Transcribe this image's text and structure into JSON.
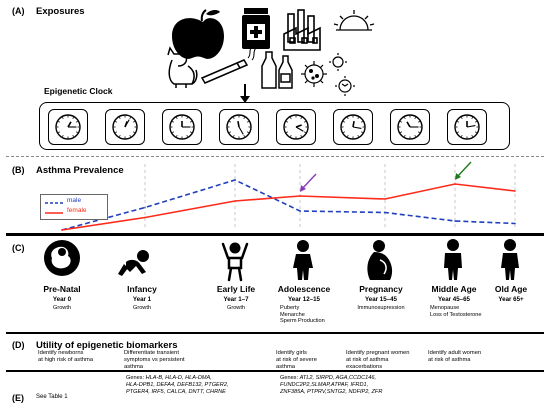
{
  "panels": {
    "a": {
      "letter": "(A)",
      "title": "Exposures",
      "clock_label": "Epigenetic Clock"
    },
    "b": {
      "letter": "(B)",
      "title": "Asthma Prevalence",
      "legend": [
        {
          "name": "male",
          "color": "#1f3fbf",
          "style": "dashed"
        },
        {
          "name": "female",
          "color": "#ff2a1a",
          "style": "solid"
        }
      ]
    },
    "c": {
      "letter": "(C)"
    },
    "d": {
      "letter": "(D)",
      "title": "Utility of epigenetic biomarkers"
    },
    "e": {
      "letter": "(E)"
    }
  },
  "exposure_icons": [
    "apple-icon",
    "medicine-bottle-icon",
    "factory-icon",
    "sun-icon",
    "cat-icon",
    "cigarette-icon",
    "bottles-icon",
    "virus-icon",
    "pollen-icon"
  ],
  "clock_count": 8,
  "chart_data": {
    "type": "line",
    "title": "Asthma Prevalence",
    "xlabel": "",
    "ylabel": "",
    "categories": [
      "Pre-Natal",
      "Infancy",
      "Early Life",
      "Adolescence",
      "Pregnancy",
      "Middle Age",
      "Old Age"
    ],
    "series": [
      {
        "name": "male",
        "color": "#1f3fbf",
        "style": "dashed",
        "values": [
          0.0,
          0.45,
          1.0,
          0.38,
          0.35,
          0.18,
          0.13
        ]
      },
      {
        "name": "female",
        "color": "#ff2a1a",
        "style": "solid",
        "values": [
          0.0,
          0.25,
          0.58,
          0.68,
          0.62,
          0.92,
          0.78
        ]
      }
    ],
    "annotations": [
      {
        "category": "Adolescence",
        "series": "female",
        "color": "#8a3ab9"
      },
      {
        "category": "Middle Age",
        "series": "female",
        "color": "#1f7a1f"
      }
    ],
    "grid": "vertical-dashed",
    "legend_position": "left"
  },
  "stages": [
    {
      "name": "Pre-Natal",
      "year": "Year 0",
      "notes": [
        "Growth"
      ],
      "icon": "fetus-icon"
    },
    {
      "name": "Infancy",
      "year": "Year 1",
      "notes": [
        "Growth"
      ],
      "icon": "crawling-baby-icon"
    },
    {
      "name": "Early Life",
      "year": "Year 1–7",
      "notes": [
        "Growth"
      ],
      "icon": "child-icon"
    },
    {
      "name": "Adolescence",
      "year": "Year 12–15",
      "notes": [
        "Puberty",
        "Menarche",
        "Sperm Production"
      ],
      "icon": "adolescent-icon"
    },
    {
      "name": "Pregnancy",
      "year": "Year 15–45",
      "notes": [
        "Immunosupression"
      ],
      "icon": "pregnant-woman-icon"
    },
    {
      "name": "Middle Age",
      "year": "Year 45–65",
      "notes": [
        "Menopause",
        "Loss of Testosterone"
      ],
      "icon": "adult-icon"
    },
    {
      "name": "Old Age",
      "year": "Year 65+",
      "notes": [],
      "icon": "elderly-person-icon"
    }
  ],
  "utility": [
    {
      "lines": [
        "Identify newborns",
        "at high risk of asthma"
      ]
    },
    {
      "lines": [
        "Differentiate transient",
        "symptoms vs persistent",
        "asthma"
      ]
    },
    {
      "lines": [
        "Identify girls",
        "at risk of severe",
        "asthma"
      ]
    },
    {
      "lines": [
        "Identify pregnant women",
        "at risk of asthma",
        "exacerbations"
      ]
    },
    {
      "lines": [
        "Identify adult women",
        "at risk of asthma"
      ]
    }
  ],
  "genes": {
    "see_table": "See Table 1",
    "early": {
      "label": "Genes: ",
      "lines": [
        "HLA-B, HLA-D, HLA-DMA,",
        "HLA-DPB1, DEFA4, DEFB132, PTGER2,",
        "PTGER4, IRF5, CALCA, DNTT, CHRNE"
      ]
    },
    "later": {
      "label": "Genes: ",
      "lines": [
        "ATL2, SIRPD, AGA,CCDC146,",
        "FUNDC2P2,SLMAP,ATPAF, IFRD1,",
        "ZNF385A, PTPRV,SNTG2, NDFIP2, ZFR"
      ]
    }
  }
}
